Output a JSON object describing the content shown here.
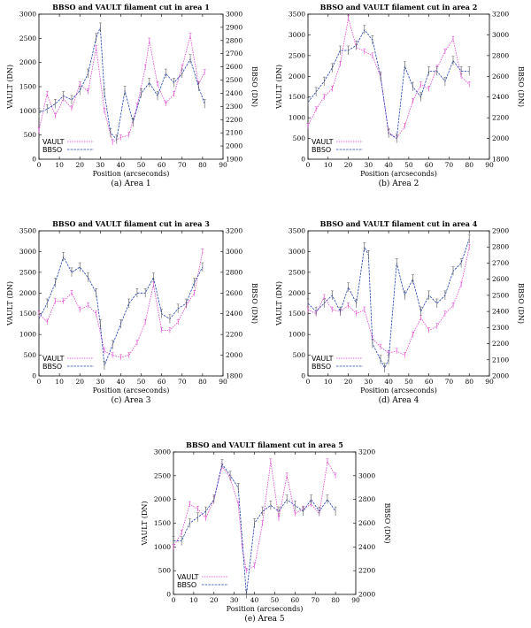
{
  "chart_data": [
    {
      "type": "line",
      "title": "BBSO and VAULT filament cut in area 1",
      "caption": "(a) Area 1",
      "xlabel": "Position (arcseconds)",
      "ylabel": "VAULT (DN)",
      "y2label": "BBSO (DN)",
      "xlim": [
        0,
        90
      ],
      "ylim": [
        0,
        3000
      ],
      "y2lim": [
        1900,
        3000
      ],
      "xticks": [
        0,
        10,
        20,
        30,
        40,
        50,
        60,
        70,
        80,
        90
      ],
      "yticks": [
        0,
        500,
        1000,
        1500,
        2000,
        2500,
        3000
      ],
      "y2ticks": [
        1900,
        2000,
        2100,
        2200,
        2300,
        2400,
        2500,
        2600,
        2700,
        2800,
        2900,
        3000
      ],
      "legend": [
        "VAULT",
        "BBSO"
      ],
      "series": [
        {
          "name": "VAULT",
          "axis": "left",
          "color": "#e040d0",
          "x": [
            0,
            4,
            8,
            12,
            16,
            20,
            24,
            28,
            32,
            36,
            40,
            44,
            48,
            52,
            54,
            58,
            62,
            66,
            70,
            74,
            78,
            81
          ],
          "y": [
            600,
            1350,
            900,
            1250,
            1050,
            1550,
            1400,
            2300,
            1000,
            350,
            450,
            500,
            1100,
            1900,
            2450,
            1550,
            1150,
            1350,
            1900,
            2550,
            1550,
            1800
          ]
        },
        {
          "name": "BBSO",
          "axis": "right",
          "color": "#2040b0",
          "x": [
            0,
            4,
            8,
            12,
            16,
            20,
            24,
            28,
            30,
            32,
            35,
            38,
            42,
            46,
            50,
            54,
            58,
            62,
            66,
            70,
            74,
            78,
            81
          ],
          "y": [
            2250,
            2280,
            2320,
            2380,
            2350,
            2420,
            2550,
            2820,
            2900,
            2400,
            2100,
            2050,
            2420,
            2180,
            2400,
            2480,
            2380,
            2550,
            2480,
            2550,
            2660,
            2450,
            2320
          ]
        }
      ]
    },
    {
      "type": "line",
      "title": "BBSO and VAULT filament cut in area 2",
      "caption": "(b) Area 2",
      "xlabel": "Position (arcseconds)",
      "ylabel": "VAULT (DN)",
      "y2label": "BBSO (DN)",
      "xlim": [
        0,
        90
      ],
      "ylim": [
        0,
        3500
      ],
      "y2lim": [
        1800,
        3200
      ],
      "xticks": [
        0,
        10,
        20,
        30,
        40,
        50,
        60,
        70,
        80,
        90
      ],
      "yticks": [
        0,
        500,
        1000,
        1500,
        2000,
        2500,
        3000,
        3500
      ],
      "y2ticks": [
        1800,
        2000,
        2200,
        2400,
        2600,
        2800,
        3000,
        3200
      ],
      "legend": [
        "VAULT",
        "BBSO"
      ],
      "series": [
        {
          "name": "VAULT",
          "axis": "left",
          "color": "#e040d0",
          "x": [
            0,
            4,
            8,
            12,
            16,
            20,
            24,
            28,
            32,
            36,
            40,
            44,
            48,
            52,
            56,
            60,
            64,
            68,
            72,
            76,
            80
          ],
          "y": [
            800,
            1200,
            1500,
            1700,
            2300,
            3400,
            2700,
            2600,
            2500,
            2000,
            650,
            500,
            800,
            1400,
            1800,
            1700,
            2200,
            2600,
            2900,
            2000,
            1800
          ]
        },
        {
          "name": "BBSO",
          "axis": "right",
          "color": "#2040b0",
          "x": [
            0,
            4,
            8,
            12,
            16,
            20,
            24,
            28,
            32,
            36,
            40,
            44,
            48,
            52,
            56,
            60,
            64,
            68,
            72,
            76,
            80
          ],
          "y": [
            2350,
            2450,
            2550,
            2680,
            2850,
            2850,
            2900,
            3050,
            2950,
            2600,
            2050,
            2000,
            2700,
            2500,
            2400,
            2650,
            2650,
            2550,
            2750,
            2650,
            2650
          ]
        }
      ]
    },
    {
      "type": "line",
      "title": "BBSO and VAULT filament cut in area 3",
      "caption": "(c) Area 3",
      "xlabel": "Position (arcseconds)",
      "ylabel": "VAULT (DN)",
      "y2label": "BBSO (DN)",
      "xlim": [
        0,
        90
      ],
      "ylim": [
        0,
        3500
      ],
      "y2lim": [
        1800,
        3200
      ],
      "xticks": [
        0,
        10,
        20,
        30,
        40,
        50,
        60,
        70,
        80,
        90
      ],
      "yticks": [
        0,
        500,
        1000,
        1500,
        2000,
        2500,
        3000,
        3500
      ],
      "y2ticks": [
        1800,
        2000,
        2200,
        2400,
        2600,
        2800,
        3000,
        3200
      ],
      "legend": [
        "VAULT",
        "BBSO"
      ],
      "series": [
        {
          "name": "VAULT",
          "axis": "left",
          "color": "#e040d0",
          "x": [
            0,
            4,
            8,
            12,
            16,
            20,
            24,
            28,
            32,
            36,
            40,
            44,
            48,
            52,
            56,
            60,
            64,
            68,
            72,
            76,
            80
          ],
          "y": [
            1500,
            1300,
            1800,
            1800,
            2000,
            1600,
            1700,
            1500,
            600,
            500,
            450,
            500,
            800,
            1300,
            2200,
            1100,
            1100,
            1300,
            1700,
            2000,
            3000
          ]
        },
        {
          "name": "BBSO",
          "axis": "right",
          "color": "#2040b0",
          "x": [
            0,
            4,
            8,
            12,
            16,
            20,
            24,
            28,
            30,
            32,
            36,
            40,
            44,
            48,
            52,
            56,
            60,
            64,
            68,
            72,
            76,
            80
          ],
          "y": [
            2350,
            2500,
            2700,
            2950,
            2800,
            2850,
            2750,
            2600,
            2300,
            1900,
            2100,
            2300,
            2500,
            2600,
            2600,
            2750,
            2400,
            2350,
            2450,
            2500,
            2700,
            2850
          ]
        }
      ]
    },
    {
      "type": "line",
      "title": "BBSO and VAULT filament cut in area 4",
      "caption": "(d) Area 4",
      "xlabel": "Position (arcseconds)",
      "ylabel": "VAULT (DN)",
      "y2label": "BBSO (DN)",
      "xlim": [
        0,
        90
      ],
      "ylim": [
        0,
        3500
      ],
      "y2lim": [
        2000,
        2900
      ],
      "xticks": [
        0,
        10,
        20,
        30,
        40,
        50,
        60,
        70,
        80,
        90
      ],
      "yticks": [
        0,
        500,
        1000,
        1500,
        2000,
        2500,
        3000,
        3500
      ],
      "y2ticks": [
        2000,
        2100,
        2200,
        2300,
        2400,
        2500,
        2600,
        2700,
        2800,
        2900
      ],
      "legend": [
        "VAULT",
        "BBSO"
      ],
      "series": [
        {
          "name": "VAULT",
          "axis": "left",
          "color": "#e040d0",
          "x": [
            0,
            4,
            8,
            12,
            16,
            20,
            24,
            28,
            32,
            36,
            40,
            44,
            48,
            52,
            56,
            60,
            64,
            68,
            72,
            76,
            80
          ],
          "y": [
            1600,
            1500,
            1900,
            1600,
            1550,
            1700,
            1500,
            1600,
            900,
            700,
            550,
            600,
            500,
            1000,
            1400,
            1100,
            1200,
            1500,
            1700,
            2200,
            3100
          ]
        },
        {
          "name": "BBSO",
          "axis": "right",
          "color": "#2040b0",
          "x": [
            0,
            4,
            8,
            12,
            16,
            20,
            24,
            28,
            30,
            32,
            36,
            38,
            40,
            44,
            48,
            52,
            56,
            60,
            64,
            68,
            72,
            76,
            80
          ],
          "y": [
            2450,
            2400,
            2450,
            2500,
            2400,
            2550,
            2450,
            2800,
            2750,
            2200,
            2100,
            2050,
            2100,
            2700,
            2500,
            2600,
            2400,
            2500,
            2450,
            2500,
            2650,
            2700,
            2850
          ]
        }
      ]
    },
    {
      "type": "line",
      "title": "BBSO and VAULT filament cut in area 5",
      "caption": "(e) Area 5",
      "xlabel": "Position (arcseconds)",
      "ylabel": "VAULT (DN)",
      "y2label": "BBSO (DN)",
      "xlim": [
        0,
        90
      ],
      "ylim": [
        0,
        3000
      ],
      "y2lim": [
        2000,
        3200
      ],
      "xticks": [
        0,
        10,
        20,
        30,
        40,
        50,
        60,
        70,
        80,
        90
      ],
      "yticks": [
        0,
        500,
        1000,
        1500,
        2000,
        2500,
        3000
      ],
      "y2ticks": [
        2000,
        2200,
        2400,
        2600,
        2800,
        3000,
        3200
      ],
      "legend": [
        "VAULT",
        "BBSO"
      ],
      "series": [
        {
          "name": "VAULT",
          "axis": "left",
          "color": "#e040d0",
          "x": [
            0,
            4,
            8,
            12,
            16,
            20,
            24,
            28,
            32,
            34,
            36,
            40,
            44,
            48,
            52,
            56,
            60,
            64,
            68,
            72,
            76,
            80
          ],
          "y": [
            1000,
            1300,
            1900,
            1800,
            1600,
            2000,
            2700,
            2450,
            1900,
            1000,
            500,
            600,
            1500,
            2800,
            1600,
            2500,
            1700,
            1800,
            1900,
            1700,
            2800,
            2500
          ]
        },
        {
          "name": "BBSO",
          "axis": "right",
          "color": "#2040b0",
          "x": [
            0,
            4,
            8,
            12,
            16,
            20,
            24,
            28,
            32,
            36,
            40,
            44,
            48,
            52,
            56,
            60,
            64,
            68,
            72,
            76,
            80
          ],
          "y": [
            2450,
            2450,
            2600,
            2650,
            2700,
            2800,
            3100,
            3000,
            2900,
            2000,
            2600,
            2700,
            2750,
            2700,
            2800,
            2750,
            2700,
            2800,
            2700,
            2800,
            2700
          ]
        }
      ]
    }
  ]
}
